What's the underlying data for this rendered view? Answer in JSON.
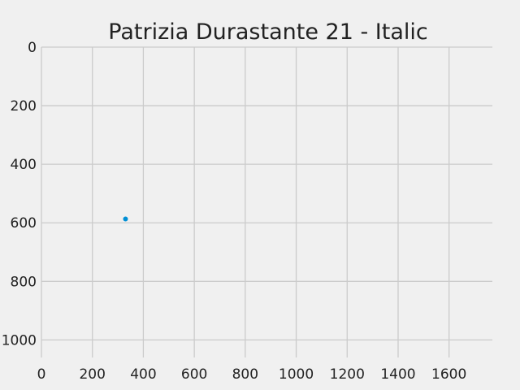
{
  "chart_data": {
    "type": "scatter",
    "title": "Patrizia Durastante 21 - Italic",
    "xlabel": "",
    "ylabel": "",
    "xlim": [
      0,
      1770
    ],
    "ylim": [
      1060,
      0
    ],
    "y_inverted": true,
    "grid": true,
    "x_ticks": [
      0,
      200,
      400,
      600,
      800,
      1000,
      1200,
      1400,
      1600
    ],
    "y_ticks": [
      0,
      200,
      400,
      600,
      800,
      1000
    ],
    "series": [
      {
        "color": "#008fd5",
        "points": [
          {
            "x": 330,
            "y": 587
          }
        ]
      }
    ]
  }
}
